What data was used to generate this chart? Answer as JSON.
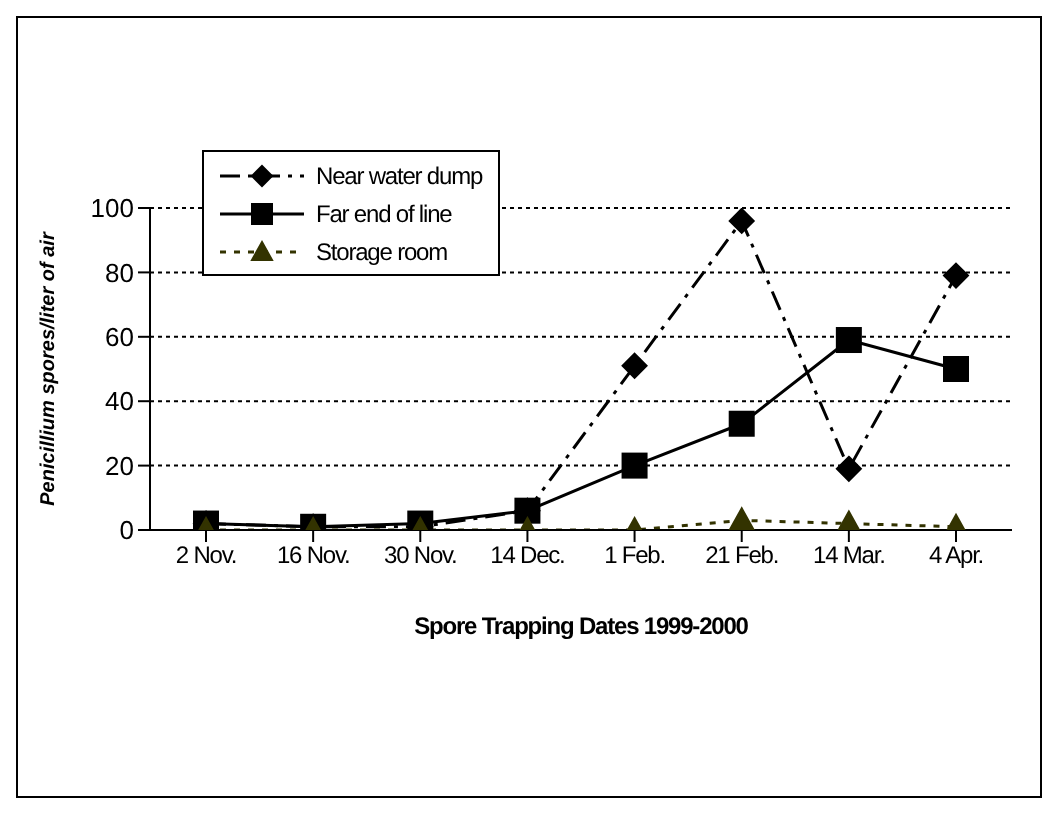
{
  "chart_data": {
    "type": "line",
    "xlabel": "Spore Trapping Dates 1999-2000",
    "ylabel": "Penicillium   spores/liter of air",
    "categories": [
      "2 Nov.",
      "16 Nov.",
      "30 Nov.",
      "14 Dec.",
      "1 Feb.",
      "21 Feb.",
      "14 Mar.",
      "4 Apr."
    ],
    "series": [
      {
        "name": "Near water dump",
        "color": "#000000",
        "values": [
          2,
          1,
          1,
          6,
          51,
          96,
          19,
          79
        ],
        "marker": "diamond",
        "line_style": "dashdot"
      },
      {
        "name": "Far end of line",
        "color": "#000000",
        "values": [
          2,
          1,
          2,
          6,
          20,
          33,
          59,
          50
        ],
        "marker": "square",
        "line_style": "solid"
      },
      {
        "name": "Storage room",
        "color": "#333300",
        "values": [
          0,
          0,
          0,
          0,
          0,
          3,
          2,
          1
        ],
        "marker": "triangle",
        "line_style": "dotted"
      }
    ],
    "ylim": [
      0,
      100
    ],
    "yticks": [
      0,
      20,
      40,
      60,
      80,
      100
    ],
    "grid": "y",
    "legend": "top left"
  }
}
